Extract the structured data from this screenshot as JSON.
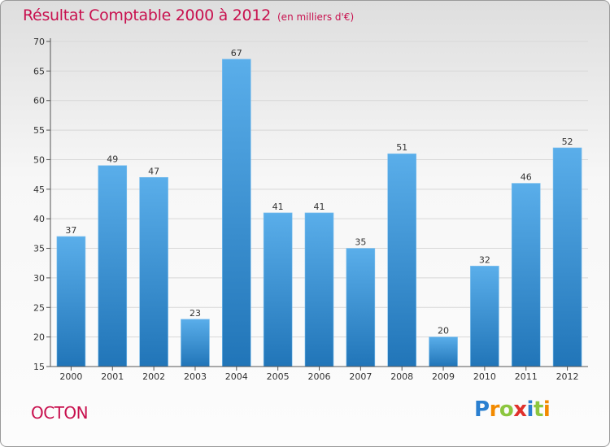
{
  "chart_data": {
    "type": "bar",
    "title": "Résultat Comptable 2000 à 2012",
    "subtitle": "(en milliers d'€)",
    "categories": [
      "2000",
      "2001",
      "2002",
      "2003",
      "2004",
      "2005",
      "2006",
      "2007",
      "2008",
      "2009",
      "2010",
      "2011",
      "2012"
    ],
    "values": [
      37,
      49,
      47,
      23,
      67,
      41,
      41,
      35,
      51,
      20,
      32,
      46,
      52
    ],
    "ylim": [
      15,
      70
    ],
    "yticks": [
      15,
      20,
      25,
      30,
      35,
      40,
      45,
      50,
      55,
      60,
      65,
      70
    ],
    "xlabel": "",
    "ylabel": "",
    "grid": true,
    "bar_color": "#3a8fd6"
  },
  "footer": {
    "commune": "OCTON",
    "logo_letters": [
      {
        "ch": "P",
        "color": "#2a7fd0"
      },
      {
        "ch": "r",
        "color": "#f28a00"
      },
      {
        "ch": "o",
        "color": "#8cc63f"
      },
      {
        "ch": "x",
        "color": "#e0312c"
      },
      {
        "ch": "i",
        "color": "#2a7fd0"
      },
      {
        "ch": "t",
        "color": "#8cc63f"
      },
      {
        "ch": "i",
        "color": "#f28a00"
      }
    ]
  },
  "colors": {
    "title": "#c8104e",
    "axis": "#555555",
    "grid": "#d7d7d7"
  }
}
